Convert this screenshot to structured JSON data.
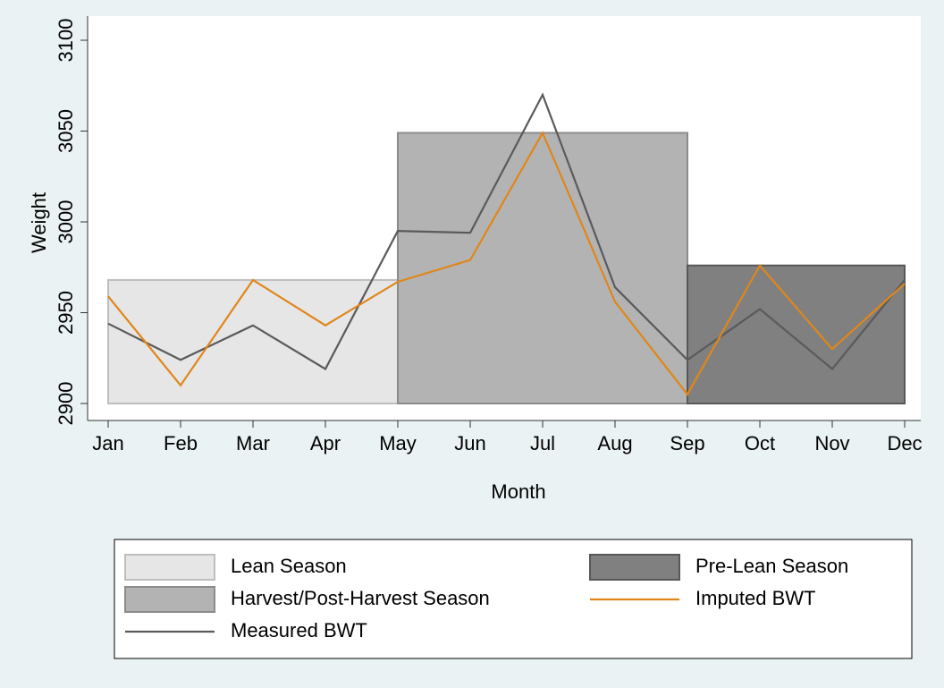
{
  "chart_data": {
    "type": "line",
    "x_label": "Month",
    "y_label": "Weight",
    "categories": [
      "Jan",
      "Feb",
      "Mar",
      "Apr",
      "May",
      "Jun",
      "Jul",
      "Aug",
      "Sep",
      "Oct",
      "Nov",
      "Dec"
    ],
    "ylim": [
      2900,
      3100
    ],
    "yticks": [
      2900,
      2950,
      3000,
      3050,
      3100
    ],
    "series": [
      {
        "name": "Lean Season",
        "type": "band",
        "color": "#e6e6e6",
        "span": [
          "Jan",
          "May"
        ],
        "value": 2968
      },
      {
        "name": "Harvest/Post-Harvest Season",
        "type": "band",
        "color": "#b3b3b3",
        "span": [
          "May",
          "Sep"
        ],
        "value": 3049
      },
      {
        "name": "Measured BWT",
        "type": "line",
        "color": "#5a5a5a",
        "values": [
          2944,
          2924,
          2943,
          2919,
          2995,
          2994,
          3070,
          2964,
          2924,
          2952,
          2919,
          2968
        ]
      },
      {
        "name": "Pre-Lean Season",
        "type": "band",
        "color": "#808080",
        "span": [
          "Sep",
          "Dec"
        ],
        "value": 2976
      },
      {
        "name": "Imputed BWT",
        "type": "line",
        "color": "#e0861a",
        "values": [
          2959,
          2910,
          2968,
          2943,
          2967,
          2979,
          3049,
          2956,
          2905,
          2976,
          2930,
          2966
        ]
      }
    ]
  }
}
